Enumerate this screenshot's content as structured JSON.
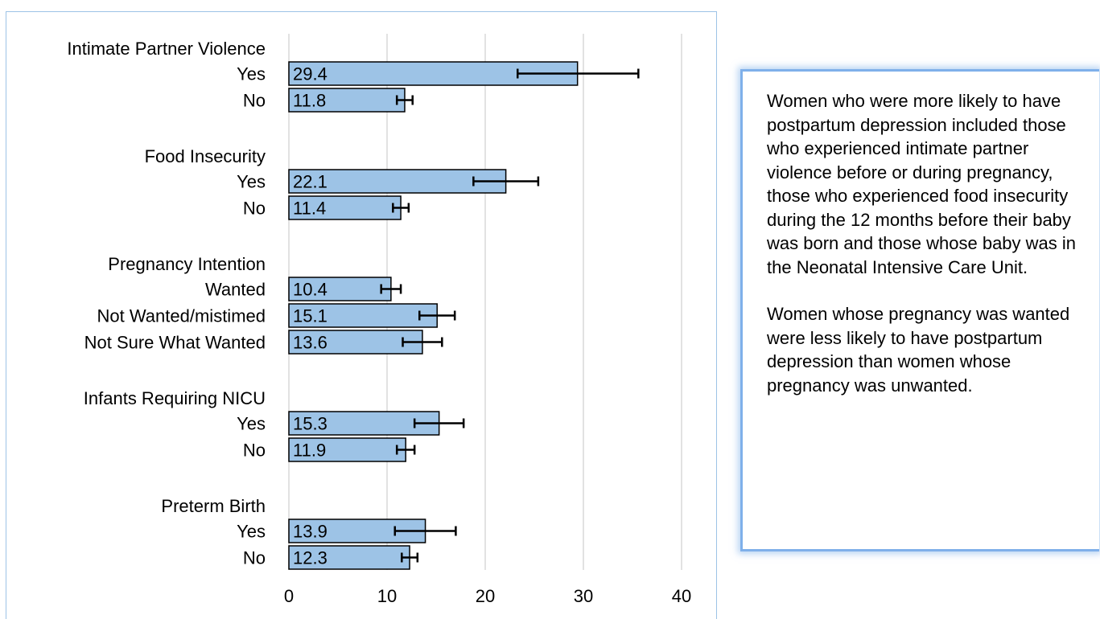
{
  "chart_data": {
    "type": "bar",
    "orientation": "horizontal",
    "xlim": [
      0,
      40
    ],
    "x_ticks": [
      "0",
      "10",
      "20",
      "30",
      "40"
    ],
    "grid": true,
    "error_bars": true,
    "groups": [
      {
        "title": "Intimate Partner Violence",
        "bars": [
          {
            "label": "Yes",
            "value": 29.4,
            "value_label": "29.4",
            "ci": [
              23.3,
              35.6
            ]
          },
          {
            "label": "No",
            "value": 11.8,
            "value_label": "11.8",
            "ci": [
              11.0,
              12.6
            ]
          }
        ]
      },
      {
        "title": "Food Insecurity",
        "bars": [
          {
            "label": "Yes",
            "value": 22.1,
            "value_label": "22.1",
            "ci": [
              18.8,
              25.4
            ]
          },
          {
            "label": "No",
            "value": 11.4,
            "value_label": "11.4",
            "ci": [
              10.6,
              12.2
            ]
          }
        ]
      },
      {
        "title": "Pregnancy Intention",
        "bars": [
          {
            "label": "Wanted",
            "value": 10.4,
            "value_label": "10.4",
            "ci": [
              9.4,
              11.4
            ]
          },
          {
            "label": "Not Wanted/mistimed",
            "value": 15.1,
            "value_label": "15.1",
            "ci": [
              13.3,
              16.9
            ]
          },
          {
            "label": "Not Sure What Wanted",
            "value": 13.6,
            "value_label": "13.6",
            "ci": [
              11.6,
              15.6
            ]
          }
        ]
      },
      {
        "title": "Infants Requiring NICU",
        "bars": [
          {
            "label": "Yes",
            "value": 15.3,
            "value_label": "15.3",
            "ci": [
              12.8,
              17.8
            ]
          },
          {
            "label": "No",
            "value": 11.9,
            "value_label": "11.9",
            "ci": [
              11.0,
              12.8
            ]
          }
        ]
      },
      {
        "title": "Preterm Birth",
        "bars": [
          {
            "label": "Yes",
            "value": 13.9,
            "value_label": "13.9",
            "ci": [
              10.8,
              17.0
            ]
          },
          {
            "label": "No",
            "value": 12.3,
            "value_label": "12.3",
            "ci": [
              11.5,
              13.1
            ]
          }
        ]
      }
    ],
    "colors": {
      "bar_fill": "#9dc3e6",
      "bar_stroke": "#000000",
      "grid": "#d9d9d9",
      "error_bar": "#000000"
    }
  },
  "callout": {
    "paragraphs": [
      "Women who were more likely to have postpartum depression included those who experienced intimate partner violence before or during pregnancy, those who experienced food insecurity during the 12 months before their baby was born and those whose baby was in the Neonatal Intensive Care Unit.",
      "Women whose pregnancy was wanted were less likely to have postpartum depression than women whose pregnancy was unwanted."
    ],
    "border_color": "#7fb0ea"
  }
}
